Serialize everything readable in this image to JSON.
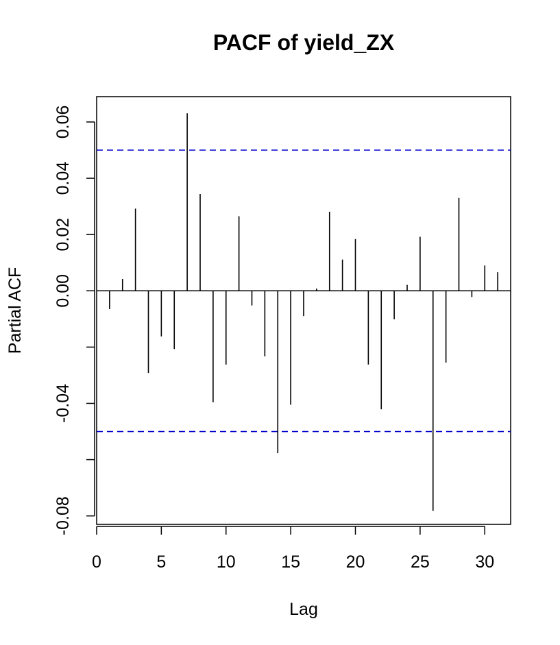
{
  "chart_data": {
    "type": "bar",
    "title": "PACF of yield_ZX",
    "xlabel": "Lag",
    "ylabel": "Partial ACF",
    "xlim": [
      0,
      32
    ],
    "ylim": [
      -0.083,
      0.069
    ],
    "x_ticks": [
      0,
      5,
      10,
      15,
      20,
      25,
      30
    ],
    "x_tick_labels": [
      "0",
      "5",
      "10",
      "15",
      "20",
      "25",
      "30"
    ],
    "y_ticks": [
      -0.08,
      -0.06,
      -0.04,
      -0.02,
      0.0,
      0.02,
      0.04,
      0.06
    ],
    "y_tick_labels": [
      "-0.08",
      "",
      "-0.04",
      "",
      "0.00",
      "0.02",
      "0.04",
      "0.06"
    ],
    "confidence_bound": 0.05,
    "confidence_color": "#0000cc",
    "lags": [
      1,
      2,
      3,
      4,
      5,
      6,
      7,
      8,
      9,
      10,
      11,
      12,
      13,
      14,
      15,
      16,
      17,
      18,
      19,
      20,
      21,
      22,
      23,
      24,
      25,
      26,
      27,
      28,
      29,
      30,
      31
    ],
    "values": [
      -0.0065,
      0.0042,
      0.0292,
      -0.0292,
      -0.0162,
      -0.0207,
      0.0631,
      0.0344,
      -0.0396,
      -0.0262,
      0.0265,
      -0.0052,
      -0.0233,
      -0.0577,
      -0.0405,
      -0.009,
      0.0008,
      0.0281,
      0.0111,
      0.0184,
      -0.0262,
      -0.0421,
      -0.0101,
      0.0021,
      0.0192,
      -0.0782,
      -0.0255,
      0.033,
      -0.0022,
      0.009,
      0.0066
    ],
    "grid": false,
    "legend": "none"
  }
}
